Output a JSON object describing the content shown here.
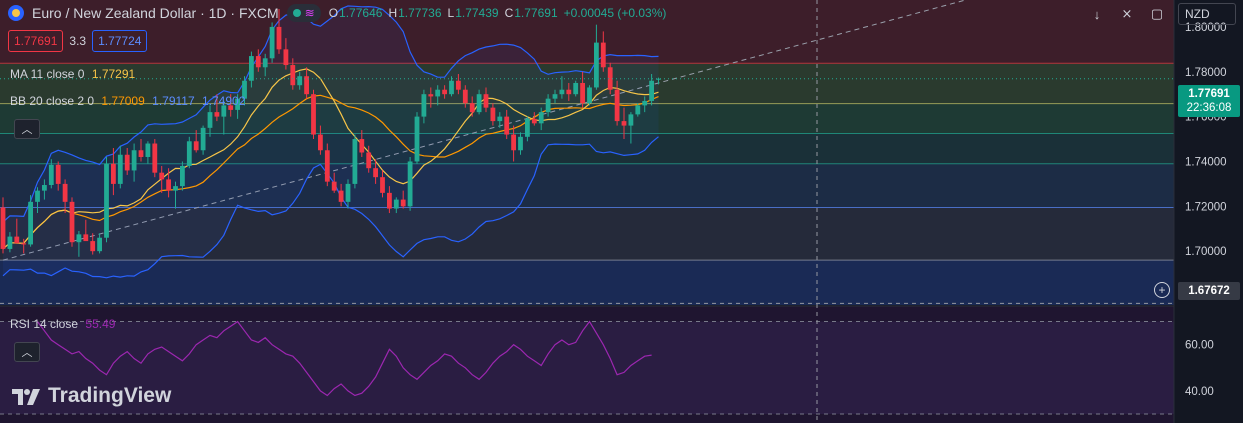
{
  "header": {
    "symbol_title": "Euro / New Zealand Dollar · 1D · FXCM",
    "ohlc": [
      {
        "k": "O",
        "v": "1.77646"
      },
      {
        "k": "H",
        "v": "1.77736"
      },
      {
        "k": "L",
        "v": "1.77439"
      },
      {
        "k": "C",
        "v": "1.77691"
      },
      {
        "k": "",
        "v": "+0.00045 (+0.03%)"
      }
    ],
    "sell_price": "1.77691",
    "spread": "3.3",
    "buy_price": "1.77724",
    "currency": "NZD",
    "pill_icon": "≋"
  },
  "indicators": {
    "ma": {
      "name": "MA 11 close 0",
      "value": "1.77291",
      "color": "#f7c548"
    },
    "bb": {
      "name": "BB 20 close 2 0",
      "basis": "1.77009",
      "upper": "1.79117",
      "lower": "1.74902",
      "basis_color": "#ff9800",
      "band_color": "#2962ff"
    },
    "rsi": {
      "name": "RSI 14 close",
      "value": "55.49",
      "color": "#9c27b0"
    }
  },
  "price_axis": {
    "labels": [
      "1.80000",
      "1.78000",
      "1.76000",
      "1.74000",
      "1.72000",
      "1.70000"
    ],
    "last_price_tag": "1.77691",
    "countdown": "22:36:08",
    "crosshair_price": "1.67672"
  },
  "rsi_axis": {
    "labels": [
      "60.00",
      "40.00"
    ]
  },
  "branding": {
    "logo_text": "TradingView"
  },
  "chart_data": {
    "type": "candlestick",
    "instrument": "EURNZD",
    "timeframe": "1D",
    "ylim": [
      1.676,
      1.812
    ],
    "candles": [
      {
        "o": 1.7195,
        "h": 1.724,
        "l": 1.699,
        "c": 1.701
      },
      {
        "o": 1.701,
        "h": 1.7085,
        "l": 1.6995,
        "c": 1.7065
      },
      {
        "o": 1.7065,
        "h": 1.7145,
        "l": 1.704,
        "c": 1.7035
      },
      {
        "o": 1.7035,
        "h": 1.7055,
        "l": 1.699,
        "c": 1.703
      },
      {
        "o": 1.703,
        "h": 1.725,
        "l": 1.702,
        "c": 1.722
      },
      {
        "o": 1.722,
        "h": 1.7285,
        "l": 1.717,
        "c": 1.727
      },
      {
        "o": 1.727,
        "h": 1.732,
        "l": 1.723,
        "c": 1.7295
      },
      {
        "o": 1.7295,
        "h": 1.741,
        "l": 1.728,
        "c": 1.7385
      },
      {
        "o": 1.7385,
        "h": 1.74,
        "l": 1.727,
        "c": 1.73
      },
      {
        "o": 1.73,
        "h": 1.732,
        "l": 1.717,
        "c": 1.722
      },
      {
        "o": 1.722,
        "h": 1.724,
        "l": 1.702,
        "c": 1.704
      },
      {
        "o": 1.704,
        "h": 1.709,
        "l": 1.6975,
        "c": 1.7075
      },
      {
        "o": 1.7075,
        "h": 1.714,
        "l": 1.705,
        "c": 1.7045
      },
      {
        "o": 1.7045,
        "h": 1.708,
        "l": 1.6985,
        "c": 1.7
      },
      {
        "o": 1.7,
        "h": 1.708,
        "l": 1.699,
        "c": 1.706
      },
      {
        "o": 1.706,
        "h": 1.742,
        "l": 1.704,
        "c": 1.739
      },
      {
        "o": 1.739,
        "h": 1.746,
        "l": 1.725,
        "c": 1.73
      },
      {
        "o": 1.73,
        "h": 1.747,
        "l": 1.728,
        "c": 1.743
      },
      {
        "o": 1.743,
        "h": 1.746,
        "l": 1.734,
        "c": 1.736
      },
      {
        "o": 1.736,
        "h": 1.748,
        "l": 1.731,
        "c": 1.745
      },
      {
        "o": 1.745,
        "h": 1.75,
        "l": 1.74,
        "c": 1.742
      },
      {
        "o": 1.742,
        "h": 1.749,
        "l": 1.739,
        "c": 1.748
      },
      {
        "o": 1.748,
        "h": 1.75,
        "l": 1.733,
        "c": 1.735
      },
      {
        "o": 1.735,
        "h": 1.738,
        "l": 1.726,
        "c": 1.732
      },
      {
        "o": 1.732,
        "h": 1.737,
        "l": 1.724,
        "c": 1.727
      },
      {
        "o": 1.727,
        "h": 1.731,
        "l": 1.719,
        "c": 1.729
      },
      {
        "o": 1.729,
        "h": 1.74,
        "l": 1.727,
        "c": 1.738
      },
      {
        "o": 1.738,
        "h": 1.751,
        "l": 1.737,
        "c": 1.749
      },
      {
        "o": 1.749,
        "h": 1.754,
        "l": 1.744,
        "c": 1.745
      },
      {
        "o": 1.745,
        "h": 1.756,
        "l": 1.743,
        "c": 1.755
      },
      {
        "o": 1.755,
        "h": 1.765,
        "l": 1.751,
        "c": 1.762
      },
      {
        "o": 1.762,
        "h": 1.77,
        "l": 1.758,
        "c": 1.76
      },
      {
        "o": 1.76,
        "h": 1.767,
        "l": 1.752,
        "c": 1.765
      },
      {
        "o": 1.765,
        "h": 1.77,
        "l": 1.76,
        "c": 1.763
      },
      {
        "o": 1.763,
        "h": 1.77,
        "l": 1.759,
        "c": 1.768
      },
      {
        "o": 1.768,
        "h": 1.778,
        "l": 1.765,
        "c": 1.776
      },
      {
        "o": 1.776,
        "h": 1.789,
        "l": 1.773,
        "c": 1.787
      },
      {
        "o": 1.787,
        "h": 1.79,
        "l": 1.78,
        "c": 1.782
      },
      {
        "o": 1.782,
        "h": 1.788,
        "l": 1.778,
        "c": 1.786
      },
      {
        "o": 1.786,
        "h": 1.802,
        "l": 1.784,
        "c": 1.8
      },
      {
        "o": 1.8,
        "h": 1.808,
        "l": 1.788,
        "c": 1.79
      },
      {
        "o": 1.79,
        "h": 1.795,
        "l": 1.781,
        "c": 1.783
      },
      {
        "o": 1.783,
        "h": 1.786,
        "l": 1.772,
        "c": 1.774
      },
      {
        "o": 1.774,
        "h": 1.78,
        "l": 1.772,
        "c": 1.778
      },
      {
        "o": 1.778,
        "h": 1.782,
        "l": 1.768,
        "c": 1.77
      },
      {
        "o": 1.77,
        "h": 1.772,
        "l": 1.75,
        "c": 1.752
      },
      {
        "o": 1.752,
        "h": 1.756,
        "l": 1.743,
        "c": 1.745
      },
      {
        "o": 1.745,
        "h": 1.748,
        "l": 1.729,
        "c": 1.731
      },
      {
        "o": 1.731,
        "h": 1.735,
        "l": 1.726,
        "c": 1.727
      },
      {
        "o": 1.727,
        "h": 1.73,
        "l": 1.72,
        "c": 1.722
      },
      {
        "o": 1.722,
        "h": 1.732,
        "l": 1.719,
        "c": 1.73
      },
      {
        "o": 1.73,
        "h": 1.752,
        "l": 1.728,
        "c": 1.75
      },
      {
        "o": 1.75,
        "h": 1.754,
        "l": 1.742,
        "c": 1.744
      },
      {
        "o": 1.744,
        "h": 1.747,
        "l": 1.735,
        "c": 1.737
      },
      {
        "o": 1.737,
        "h": 1.741,
        "l": 1.73,
        "c": 1.733
      },
      {
        "o": 1.733,
        "h": 1.736,
        "l": 1.724,
        "c": 1.726
      },
      {
        "o": 1.726,
        "h": 1.729,
        "l": 1.717,
        "c": 1.719
      },
      {
        "o": 1.719,
        "h": 1.724,
        "l": 1.717,
        "c": 1.723
      },
      {
        "o": 1.723,
        "h": 1.727,
        "l": 1.719,
        "c": 1.72
      },
      {
        "o": 1.72,
        "h": 1.742,
        "l": 1.718,
        "c": 1.74
      },
      {
        "o": 1.74,
        "h": 1.762,
        "l": 1.739,
        "c": 1.76
      },
      {
        "o": 1.76,
        "h": 1.772,
        "l": 1.757,
        "c": 1.77
      },
      {
        "o": 1.77,
        "h": 1.773,
        "l": 1.764,
        "c": 1.769
      },
      {
        "o": 1.769,
        "h": 1.774,
        "l": 1.765,
        "c": 1.772
      },
      {
        "o": 1.772,
        "h": 1.774,
        "l": 1.768,
        "c": 1.77
      },
      {
        "o": 1.77,
        "h": 1.778,
        "l": 1.769,
        "c": 1.776
      },
      {
        "o": 1.776,
        "h": 1.779,
        "l": 1.77,
        "c": 1.772
      },
      {
        "o": 1.772,
        "h": 1.774,
        "l": 1.764,
        "c": 1.766
      },
      {
        "o": 1.766,
        "h": 1.769,
        "l": 1.76,
        "c": 1.762
      },
      {
        "o": 1.762,
        "h": 1.772,
        "l": 1.761,
        "c": 1.77
      },
      {
        "o": 1.77,
        "h": 1.773,
        "l": 1.762,
        "c": 1.764
      },
      {
        "o": 1.764,
        "h": 1.766,
        "l": 1.756,
        "c": 1.758
      },
      {
        "o": 1.758,
        "h": 1.762,
        "l": 1.755,
        "c": 1.76
      },
      {
        "o": 1.76,
        "h": 1.763,
        "l": 1.75,
        "c": 1.752
      },
      {
        "o": 1.752,
        "h": 1.756,
        "l": 1.74,
        "c": 1.745
      },
      {
        "o": 1.745,
        "h": 1.753,
        "l": 1.743,
        "c": 1.751
      },
      {
        "o": 1.751,
        "h": 1.76,
        "l": 1.749,
        "c": 1.759
      },
      {
        "o": 1.759,
        "h": 1.762,
        "l": 1.756,
        "c": 1.757
      },
      {
        "o": 1.757,
        "h": 1.764,
        "l": 1.754,
        "c": 1.762
      },
      {
        "o": 1.762,
        "h": 1.77,
        "l": 1.76,
        "c": 1.768
      },
      {
        "o": 1.768,
        "h": 1.772,
        "l": 1.766,
        "c": 1.77
      },
      {
        "o": 1.77,
        "h": 1.778,
        "l": 1.768,
        "c": 1.772
      },
      {
        "o": 1.772,
        "h": 1.775,
        "l": 1.767,
        "c": 1.77
      },
      {
        "o": 1.77,
        "h": 1.776,
        "l": 1.769,
        "c": 1.775
      },
      {
        "o": 1.775,
        "h": 1.78,
        "l": 1.764,
        "c": 1.766
      },
      {
        "o": 1.766,
        "h": 1.774,
        "l": 1.765,
        "c": 1.773
      },
      {
        "o": 1.773,
        "h": 1.801,
        "l": 1.772,
        "c": 1.793
      },
      {
        "o": 1.793,
        "h": 1.798,
        "l": 1.78,
        "c": 1.782
      },
      {
        "o": 1.782,
        "h": 1.784,
        "l": 1.77,
        "c": 1.772
      },
      {
        "o": 1.772,
        "h": 1.776,
        "l": 1.756,
        "c": 1.758
      },
      {
        "o": 1.758,
        "h": 1.764,
        "l": 1.75,
        "c": 1.756
      },
      {
        "o": 1.756,
        "h": 1.762,
        "l": 1.748,
        "c": 1.761
      },
      {
        "o": 1.761,
        "h": 1.766,
        "l": 1.76,
        "c": 1.765
      },
      {
        "o": 1.765,
        "h": 1.769,
        "l": 1.762,
        "c": 1.767
      },
      {
        "o": 1.767,
        "h": 1.779,
        "l": 1.765,
        "c": 1.776
      },
      {
        "o": 1.77646,
        "h": 1.77736,
        "l": 1.77439,
        "c": 1.77691
      }
    ],
    "horizontal_levels": [
      1.7838,
      1.7658,
      1.7525,
      1.739,
      1.7195,
      1.696
    ],
    "crosshair_price": 1.67672,
    "trendline": {
      "from": [
        0,
        1.696
      ],
      "to": [
        95,
        1.775
      ]
    },
    "rsi": [
      70,
      66,
      62,
      60,
      58,
      56,
      57,
      54,
      52,
      49,
      47,
      52,
      55,
      57,
      54,
      52,
      56,
      58,
      59,
      57,
      55,
      53,
      56,
      60,
      62,
      64,
      63,
      66,
      68,
      70,
      66,
      62,
      61,
      63,
      60,
      58,
      56,
      55,
      52,
      48,
      44,
      40,
      38,
      41,
      43,
      40,
      38,
      39,
      42,
      46,
      52,
      58,
      55,
      50,
      47,
      45,
      48,
      51,
      53,
      56,
      55,
      52,
      50,
      47,
      45,
      48,
      52,
      55,
      57,
      60,
      58,
      55,
      53,
      51,
      56,
      60,
      62,
      60,
      61,
      66,
      70,
      65,
      60,
      54,
      47,
      48,
      51,
      53,
      55,
      55.49
    ],
    "rsi_ylim": [
      30,
      75
    ]
  }
}
